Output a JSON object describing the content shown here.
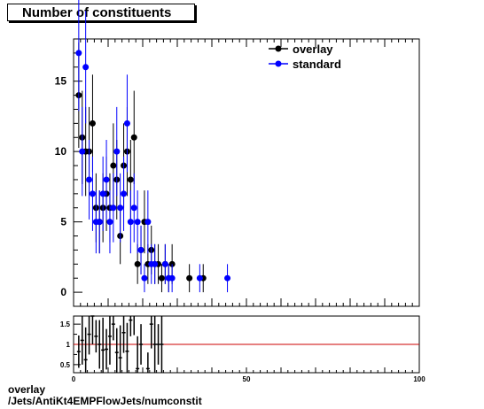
{
  "title": "Number of constituents",
  "footer": {
    "line1": "overlay",
    "line2": "/Jets/AntiKt4EMPFlowJets/numconstit"
  },
  "colors": {
    "overlay": "#000000",
    "standard": "#0000ff",
    "ratio_line": "#cc0000"
  },
  "chart_data": [
    {
      "type": "scatter",
      "title": "Number of constituents",
      "xlim": [
        0,
        100
      ],
      "ylim": [
        -1,
        18
      ],
      "yticks": [
        0,
        5,
        10,
        15
      ],
      "legend": "top-right",
      "series": [
        {
          "name": "overlay",
          "color": "#000000",
          "points": [
            [
              1.5,
              14
            ],
            [
              2.5,
              11
            ],
            [
              3.5,
              10
            ],
            [
              4.5,
              10
            ],
            [
              5.5,
              12
            ],
            [
              6.5,
              6
            ],
            [
              7.5,
              5
            ],
            [
              8.5,
              6
            ],
            [
              9.5,
              7
            ],
            [
              10.5,
              6
            ],
            [
              11.5,
              9
            ],
            [
              12.5,
              8
            ],
            [
              13.5,
              4
            ],
            [
              14.5,
              9
            ],
            [
              15.5,
              10
            ],
            [
              16.5,
              8
            ],
            [
              17.5,
              11
            ],
            [
              18.5,
              2
            ],
            [
              19.5,
              3
            ],
            [
              20.5,
              5
            ],
            [
              21.5,
              2
            ],
            [
              22.5,
              3
            ],
            [
              23.5,
              2
            ],
            [
              24.5,
              2
            ],
            [
              25.5,
              1
            ],
            [
              26.5,
              2
            ],
            [
              27.5,
              1
            ],
            [
              28.5,
              2
            ],
            [
              33.5,
              1
            ],
            [
              37.5,
              1
            ]
          ]
        },
        {
          "name": "standard",
          "color": "#0000ff",
          "points": [
            [
              1.5,
              17
            ],
            [
              2.5,
              10
            ],
            [
              3.5,
              16
            ],
            [
              4.5,
              8
            ],
            [
              5.5,
              7
            ],
            [
              6.5,
              5
            ],
            [
              7.5,
              5
            ],
            [
              8.5,
              7
            ],
            [
              9.5,
              8
            ],
            [
              10.5,
              5
            ],
            [
              11.5,
              6
            ],
            [
              12.5,
              10
            ],
            [
              13.5,
              6
            ],
            [
              14.5,
              7
            ],
            [
              15.5,
              12
            ],
            [
              16.5,
              5
            ],
            [
              17.5,
              6
            ],
            [
              18.5,
              5
            ],
            [
              19.5,
              3
            ],
            [
              20.5,
              1
            ],
            [
              21.5,
              5
            ],
            [
              22.5,
              2
            ],
            [
              23.5,
              2
            ],
            [
              26.5,
              2
            ],
            [
              27.5,
              1
            ],
            [
              28.5,
              1
            ],
            [
              36.5,
              1
            ],
            [
              44.5,
              1
            ]
          ]
        }
      ]
    },
    {
      "type": "scatter",
      "title": "",
      "xlim": [
        0,
        100
      ],
      "ylim": [
        0.3,
        1.7
      ],
      "yticks": [
        0.5,
        1,
        1.5
      ],
      "xticks": [
        0,
        50,
        100
      ],
      "reference_line": 1,
      "series": [
        {
          "name": "",
          "color": "#000000",
          "points": [
            [
              1.5,
              0.82
            ],
            [
              2.5,
              1.1
            ],
            [
              3.5,
              0.62
            ],
            [
              4.5,
              1.25
            ],
            [
              5.5,
              1.7
            ],
            [
              6.5,
              1.2
            ],
            [
              7.5,
              1.0
            ],
            [
              8.5,
              0.86
            ],
            [
              9.5,
              0.88
            ],
            [
              10.5,
              1.2
            ],
            [
              11.5,
              1.5
            ],
            [
              12.5,
              0.8
            ],
            [
              13.5,
              0.67
            ],
            [
              14.5,
              1.29
            ],
            [
              15.5,
              0.83
            ],
            [
              16.5,
              1.6
            ],
            [
              17.5,
              1.83
            ],
            [
              18.5,
              0.4
            ],
            [
              19.5,
              1.0
            ],
            [
              21.5,
              0.4
            ],
            [
              22.5,
              1.5
            ],
            [
              23.5,
              1.0
            ],
            [
              24.5,
              1.0
            ],
            [
              25.5,
              1.0
            ]
          ]
        }
      ]
    }
  ]
}
